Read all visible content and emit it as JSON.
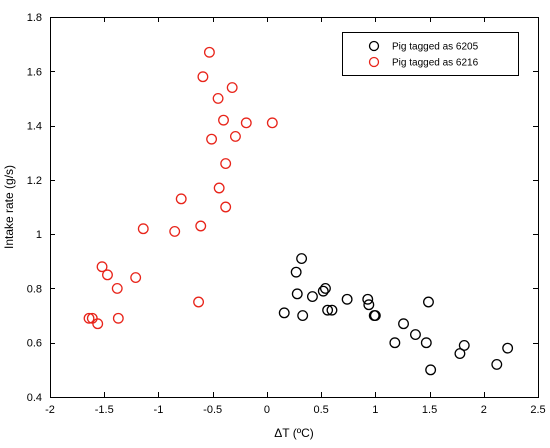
{
  "chart_data": {
    "type": "scatter",
    "title": "",
    "xlabel": "ΔT (ºC)",
    "ylabel": "Intake rate (g/s)",
    "xlim": [
      -2,
      2.5
    ],
    "ylim": [
      0.4,
      1.8
    ],
    "xticks": [
      "-2",
      "-1.5",
      "-1",
      "-0.5",
      "0",
      "0.5",
      "1",
      "1.5",
      "2",
      "2.5"
    ],
    "yticks": [
      "0.4",
      "0.6",
      "0.8",
      "1",
      "1.2",
      "1.4",
      "1.6",
      "1.8"
    ],
    "grid": false,
    "legend_position": "top-right",
    "series": [
      {
        "name": "Pig tagged as 6205",
        "color": "#000000",
        "marker": "open-circle",
        "points": [
          [
            0.16,
            0.71
          ],
          [
            0.27,
            0.86
          ],
          [
            0.28,
            0.78
          ],
          [
            0.32,
            0.91
          ],
          [
            0.33,
            0.7
          ],
          [
            0.42,
            0.77
          ],
          [
            0.52,
            0.79
          ],
          [
            0.54,
            0.8
          ],
          [
            0.56,
            0.72
          ],
          [
            0.6,
            0.72
          ],
          [
            0.74,
            0.76
          ],
          [
            0.93,
            0.76
          ],
          [
            0.94,
            0.74
          ],
          [
            0.99,
            0.7
          ],
          [
            1.0,
            0.7
          ],
          [
            1.18,
            0.6
          ],
          [
            1.26,
            0.67
          ],
          [
            1.37,
            0.63
          ],
          [
            1.47,
            0.6
          ],
          [
            1.49,
            0.75
          ],
          [
            1.51,
            0.5
          ],
          [
            1.78,
            0.56
          ],
          [
            1.82,
            0.59
          ],
          [
            2.12,
            0.52
          ],
          [
            2.22,
            0.58
          ]
        ]
      },
      {
        "name": "Pig tagged as 6216",
        "color": "#e8241a",
        "marker": "open-circle",
        "points": [
          [
            -1.64,
            0.69
          ],
          [
            -1.61,
            0.69
          ],
          [
            -1.56,
            0.67
          ],
          [
            -1.52,
            0.88
          ],
          [
            -1.47,
            0.85
          ],
          [
            -1.38,
            0.8
          ],
          [
            -1.37,
            0.69
          ],
          [
            -1.21,
            0.84
          ],
          [
            -1.14,
            1.02
          ],
          [
            -0.85,
            1.01
          ],
          [
            -0.79,
            1.13
          ],
          [
            -0.63,
            0.75
          ],
          [
            -0.61,
            1.03
          ],
          [
            -0.59,
            1.58
          ],
          [
            -0.53,
            1.67
          ],
          [
            -0.51,
            1.35
          ],
          [
            -0.45,
            1.5
          ],
          [
            -0.44,
            1.17
          ],
          [
            -0.4,
            1.42
          ],
          [
            -0.38,
            1.26
          ],
          [
            -0.38,
            1.1
          ],
          [
            -0.32,
            1.54
          ],
          [
            -0.29,
            1.36
          ],
          [
            -0.19,
            1.41
          ],
          [
            0.05,
            1.41
          ]
        ]
      }
    ]
  }
}
